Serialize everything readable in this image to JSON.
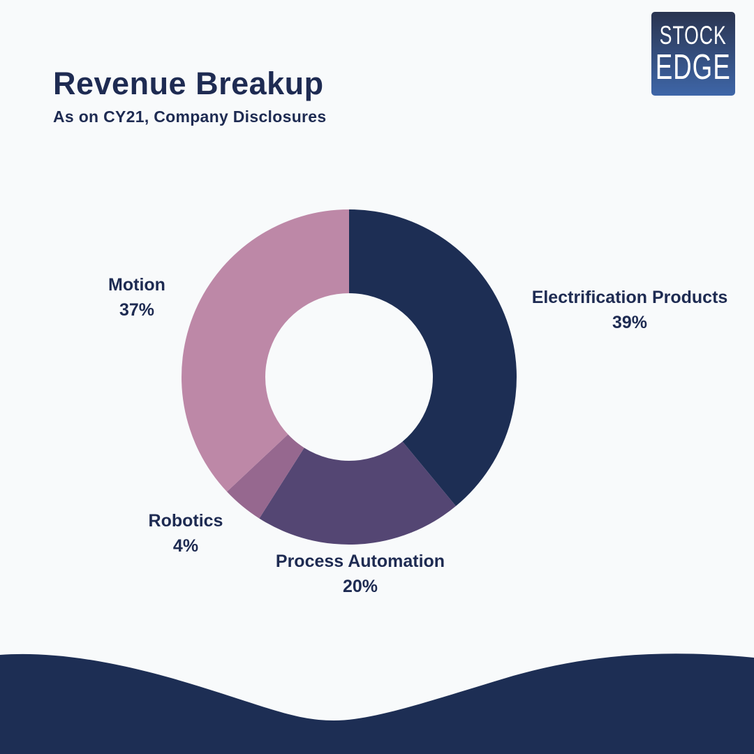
{
  "page": {
    "background": "#f8fafb"
  },
  "header": {
    "title": "Revenue Breakup",
    "subtitle": "As on CY21, Company Disclosures"
  },
  "logo": {
    "line1": "STOCK",
    "line2": "EDGE",
    "gradient_top": "#2a3450",
    "gradient_bottom": "#3e66a8"
  },
  "theme": {
    "text_navy": "#1e2b52",
    "wave_navy": "#1d2e54",
    "background": "#f8fafb"
  },
  "chart_data": {
    "type": "pie",
    "variant": "donut",
    "title": "Revenue Breakup",
    "subtitle": "As on CY21, Company Disclosures",
    "start_angle_deg": 0,
    "direction": "clockwise",
    "inner_radius_ratio": 0.5,
    "legend_position": "callout-labels",
    "segments": [
      {
        "label": "Electrification Products",
        "value": 39,
        "value_label": "39%",
        "color": "#1d2e54"
      },
      {
        "label": "Process Automation",
        "value": 20,
        "value_label": "20%",
        "color": "#544673"
      },
      {
        "label": "Robotics",
        "value": 4,
        "value_label": "4%",
        "color": "#96688f"
      },
      {
        "label": "Motion",
        "value": 37,
        "value_label": "37%",
        "color": "#bd88a7"
      }
    ]
  }
}
